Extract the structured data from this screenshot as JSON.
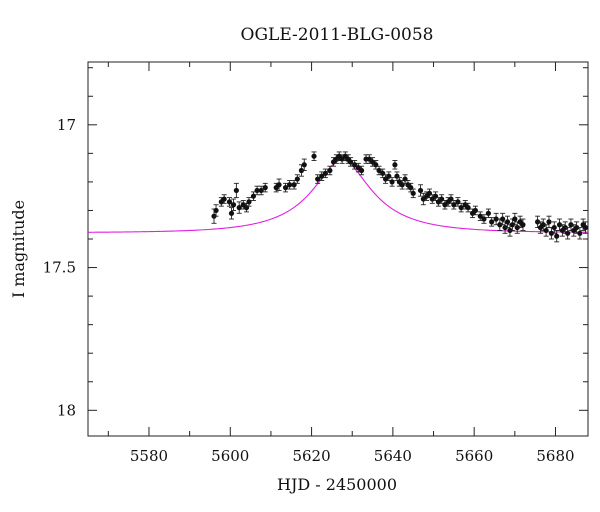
{
  "chart_data": {
    "type": "scatter",
    "title": "OGLE-2011-BLG-0058",
    "xlabel": "HJD - 2450000",
    "ylabel": "I magnitude",
    "xlim": [
      5565,
      5688
    ],
    "ylim": [
      18.09,
      16.78
    ],
    "y_inverted": true,
    "grid": false,
    "x_major_ticks": [
      5580,
      5600,
      5620,
      5640,
      5660,
      5680
    ],
    "x_tick_labels": [
      "5580",
      "5600",
      "5620",
      "5640",
      "5660",
      "5680"
    ],
    "y_major_ticks": [
      17,
      17.5,
      18
    ],
    "y_tick_labels": [
      "17",
      "17.5",
      "18"
    ],
    "model_color": "#e020e0",
    "point_color": "#111111",
    "model": {
      "t0": 5627.5,
      "baseline_mag": 17.378,
      "peak_mag": 17.123,
      "u0": 0.4,
      "tE": 18.0
    },
    "series": [
      {
        "marker": "dot-with-errorbar",
        "points": [
          [
            5596.0,
            17.32,
            0.025
          ],
          [
            5596.5,
            17.3,
            0.02
          ],
          [
            5597.8,
            17.27,
            0.015
          ],
          [
            5598.5,
            17.26,
            0.015
          ],
          [
            5599.8,
            17.27,
            0.015
          ],
          [
            5600.3,
            17.31,
            0.02
          ],
          [
            5600.8,
            17.28,
            0.02
          ],
          [
            5601.5,
            17.23,
            0.025
          ],
          [
            5602.2,
            17.29,
            0.02
          ],
          [
            5603.2,
            17.28,
            0.015
          ],
          [
            5604.0,
            17.29,
            0.015
          ],
          [
            5604.6,
            17.27,
            0.015
          ],
          [
            5605.7,
            17.25,
            0.015
          ],
          [
            5606.6,
            17.23,
            0.015
          ],
          [
            5607.6,
            17.23,
            0.015
          ],
          [
            5608.6,
            17.22,
            0.015
          ],
          [
            5611.3,
            17.22,
            0.015
          ],
          [
            5612.0,
            17.21,
            0.02
          ],
          [
            5613.6,
            17.22,
            0.015
          ],
          [
            5614.6,
            17.21,
            0.015
          ],
          [
            5615.7,
            17.21,
            0.015
          ],
          [
            5616.5,
            17.19,
            0.015
          ],
          [
            5617.5,
            17.16,
            0.02
          ],
          [
            5618.2,
            17.14,
            0.02
          ],
          [
            5620.6,
            17.11,
            0.015
          ],
          [
            5621.5,
            17.19,
            0.015
          ],
          [
            5622.5,
            17.18,
            0.015
          ],
          [
            5623.4,
            17.17,
            0.015
          ],
          [
            5624.5,
            17.16,
            0.015
          ],
          [
            5625.4,
            17.13,
            0.015
          ],
          [
            5626.1,
            17.12,
            0.015
          ],
          [
            5626.8,
            17.11,
            0.015
          ],
          [
            5627.5,
            17.12,
            0.015
          ],
          [
            5628.3,
            17.11,
            0.015
          ],
          [
            5629.0,
            17.12,
            0.015
          ],
          [
            5629.6,
            17.13,
            0.015
          ],
          [
            5630.6,
            17.14,
            0.015
          ],
          [
            5631.5,
            17.15,
            0.015
          ],
          [
            5632.3,
            17.16,
            0.015
          ],
          [
            5633.4,
            17.12,
            0.015
          ],
          [
            5634.2,
            17.12,
            0.015
          ],
          [
            5635.0,
            17.13,
            0.015
          ],
          [
            5635.8,
            17.14,
            0.015
          ],
          [
            5636.6,
            17.16,
            0.015
          ],
          [
            5637.5,
            17.17,
            0.015
          ],
          [
            5638.2,
            17.19,
            0.015
          ],
          [
            5639.0,
            17.18,
            0.015
          ],
          [
            5639.8,
            17.2,
            0.015
          ],
          [
            5640.5,
            17.14,
            0.015
          ],
          [
            5641.0,
            17.18,
            0.015
          ],
          [
            5641.6,
            17.2,
            0.015
          ],
          [
            5642.3,
            17.21,
            0.015
          ],
          [
            5643.0,
            17.19,
            0.015
          ],
          [
            5643.7,
            17.21,
            0.015
          ],
          [
            5644.4,
            17.22,
            0.015
          ],
          [
            5645.0,
            17.24,
            0.015
          ],
          [
            5646.8,
            17.23,
            0.02
          ],
          [
            5647.5,
            17.26,
            0.02
          ],
          [
            5648.3,
            17.25,
            0.015
          ],
          [
            5649.0,
            17.24,
            0.015
          ],
          [
            5649.7,
            17.26,
            0.015
          ],
          [
            5650.5,
            17.25,
            0.015
          ],
          [
            5651.2,
            17.27,
            0.015
          ],
          [
            5652.0,
            17.26,
            0.015
          ],
          [
            5652.8,
            17.28,
            0.015
          ],
          [
            5653.6,
            17.27,
            0.015
          ],
          [
            5654.3,
            17.26,
            0.015
          ],
          [
            5655.0,
            17.28,
            0.015
          ],
          [
            5656.0,
            17.27,
            0.015
          ],
          [
            5656.8,
            17.29,
            0.015
          ],
          [
            5657.8,
            17.28,
            0.015
          ],
          [
            5658.5,
            17.29,
            0.015
          ],
          [
            5659.6,
            17.31,
            0.015
          ],
          [
            5660.3,
            17.3,
            0.015
          ],
          [
            5661.5,
            17.32,
            0.015
          ],
          [
            5662.4,
            17.33,
            0.015
          ],
          [
            5663.5,
            17.31,
            0.015
          ],
          [
            5664.3,
            17.34,
            0.015
          ],
          [
            5665.4,
            17.33,
            0.02
          ],
          [
            5666.3,
            17.35,
            0.02
          ],
          [
            5667.0,
            17.33,
            0.02
          ],
          [
            5667.6,
            17.36,
            0.02
          ],
          [
            5668.2,
            17.34,
            0.02
          ],
          [
            5668.8,
            17.37,
            0.02
          ],
          [
            5669.4,
            17.35,
            0.02
          ],
          [
            5670.0,
            17.33,
            0.02
          ],
          [
            5670.6,
            17.36,
            0.02
          ],
          [
            5671.3,
            17.34,
            0.02
          ],
          [
            5672.0,
            17.35,
            0.02
          ],
          [
            5675.6,
            17.34,
            0.02
          ],
          [
            5676.3,
            17.36,
            0.02
          ],
          [
            5677.0,
            17.35,
            0.02
          ],
          [
            5677.7,
            17.37,
            0.02
          ],
          [
            5678.4,
            17.34,
            0.02
          ],
          [
            5679.0,
            17.38,
            0.02
          ],
          [
            5679.7,
            17.36,
            0.02
          ],
          [
            5680.3,
            17.39,
            0.02
          ],
          [
            5681.0,
            17.35,
            0.02
          ],
          [
            5681.7,
            17.37,
            0.02
          ],
          [
            5682.4,
            17.36,
            0.02
          ],
          [
            5683.0,
            17.38,
            0.02
          ],
          [
            5683.8,
            17.35,
            0.02
          ],
          [
            5684.5,
            17.37,
            0.02
          ],
          [
            5685.2,
            17.36,
            0.02
          ],
          [
            5686.0,
            17.38,
            0.02
          ],
          [
            5686.8,
            17.35,
            0.02
          ],
          [
            5687.4,
            17.36,
            0.02
          ]
        ]
      }
    ]
  }
}
